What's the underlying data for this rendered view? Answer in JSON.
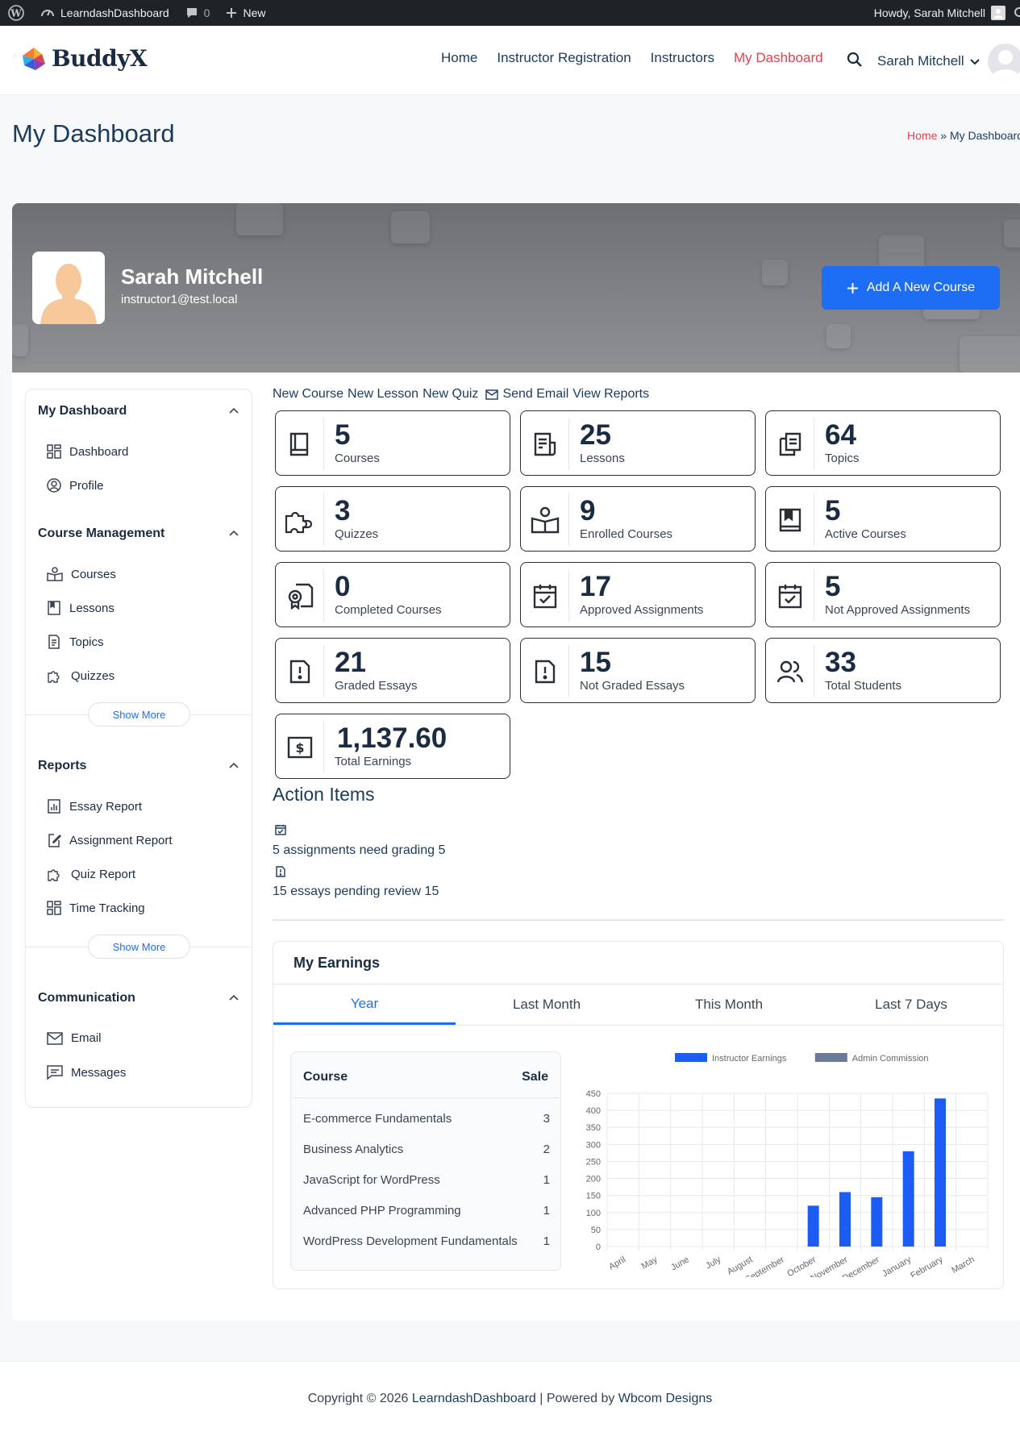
{
  "admin_bar": {
    "site_name": "LearndashDashboard",
    "comments_count": "0",
    "new_label": "New",
    "howdy": "Howdy, Sarah Mitchell"
  },
  "header": {
    "logo_text": "BuddyX",
    "nav": [
      "Home",
      "Instructor Registration",
      "Instructors",
      "My Dashboard"
    ],
    "active_nav": "My Dashboard",
    "user_name": "Sarah Mitchell"
  },
  "page": {
    "title": "My Dashboard",
    "breadcrumb_home": "Home",
    "breadcrumb_sep": "»",
    "breadcrumb_current": "My Dashboard"
  },
  "profile": {
    "name": "Sarah Mitchell",
    "email": "instructor1@test.local",
    "add_course_label": "Add A New Course"
  },
  "sidebar": {
    "my_dashboard": {
      "title": "My Dashboard",
      "items": [
        "Dashboard",
        "Profile"
      ]
    },
    "course_management": {
      "title": "Course Management",
      "items": [
        "Courses",
        "Lessons",
        "Topics",
        "Quizzes"
      ],
      "show_more": "Show More"
    },
    "reports": {
      "title": "Reports",
      "items": [
        "Essay Report",
        "Assignment Report",
        "Quiz Report",
        "Time Tracking"
      ],
      "show_more": "Show More"
    },
    "communication": {
      "title": "Communication",
      "items": [
        "Email",
        "Messages"
      ]
    }
  },
  "quick_links": {
    "new_course": "New Course",
    "new_lesson": "New Lesson",
    "new_quiz": "New Quiz",
    "send_email": "Send Email",
    "view_reports": "View Reports"
  },
  "stats": [
    {
      "value": "5",
      "label": "Courses",
      "icon": "book-icon"
    },
    {
      "value": "25",
      "label": "Lessons",
      "icon": "lesson-icon"
    },
    {
      "value": "64",
      "label": "Topics",
      "icon": "topics-icon"
    },
    {
      "value": "3",
      "label": "Quizzes",
      "icon": "puzzle-icon"
    },
    {
      "value": "9",
      "label": "Enrolled Courses",
      "icon": "open-book-icon"
    },
    {
      "value": "5",
      "label": "Active Courses",
      "icon": "bookmark-book-icon"
    },
    {
      "value": "0",
      "label": "Completed Courses",
      "icon": "certificate-icon"
    },
    {
      "value": "17",
      "label": "Approved Assignments",
      "icon": "calendar-check-icon"
    },
    {
      "value": "5",
      "label": "Not Approved Assignments",
      "icon": "calendar-check-icon"
    },
    {
      "value": "21",
      "label": "Graded Essays",
      "icon": "essay-icon"
    },
    {
      "value": "15",
      "label": "Not Graded Essays",
      "icon": "essay-icon"
    },
    {
      "value": "33",
      "label": "Total Students",
      "icon": "users-icon"
    },
    {
      "value": "1,137.60",
      "label": "Total Earnings",
      "icon": "money-icon"
    }
  ],
  "action_items": {
    "title": "Action Items",
    "items": [
      {
        "text": "5 assignments need grading 5",
        "icon": "calendar-check-icon"
      },
      {
        "text": "15 essays pending review 15",
        "icon": "essay-icon"
      }
    ]
  },
  "earnings": {
    "title": "My Earnings",
    "tabs": [
      "Year",
      "Last Month",
      "This Month",
      "Last 7 Days"
    ],
    "active_tab": "Year",
    "table": {
      "headers": [
        "Course",
        "Sale"
      ],
      "rows": [
        [
          "E-commerce Fundamentals",
          "3"
        ],
        [
          "Business Analytics",
          "2"
        ],
        [
          "JavaScript for WordPress",
          "1"
        ],
        [
          "Advanced PHP Programming",
          "1"
        ],
        [
          "WordPress Development Fundamentals",
          "1"
        ]
      ]
    }
  },
  "chart_data": {
    "type": "bar",
    "categories": [
      "April",
      "May",
      "June",
      "July",
      "August",
      "September",
      "October",
      "November",
      "December",
      "January",
      "February",
      "March"
    ],
    "series": [
      {
        "name": "Instructor Earnings",
        "color": "#1d5bf5",
        "values": [
          0,
          0,
          0,
          0,
          0,
          0,
          120,
          160,
          145,
          280,
          435,
          0
        ]
      },
      {
        "name": "Admin Commission",
        "color": "#6b7a95",
        "values": [
          0,
          0,
          0,
          0,
          0,
          0,
          0,
          0,
          0,
          0,
          0,
          0
        ]
      }
    ],
    "yticks": [
      0,
      50,
      100,
      150,
      200,
      250,
      300,
      350,
      400,
      450
    ],
    "ylim": [
      0,
      450
    ],
    "grid": true,
    "legend": "top"
  },
  "footer": {
    "prefix": "Copyright © 2026",
    "site_link": "LearndashDashboard",
    "powered": "| Powered by",
    "vendor_link": "Wbcom Designs"
  }
}
